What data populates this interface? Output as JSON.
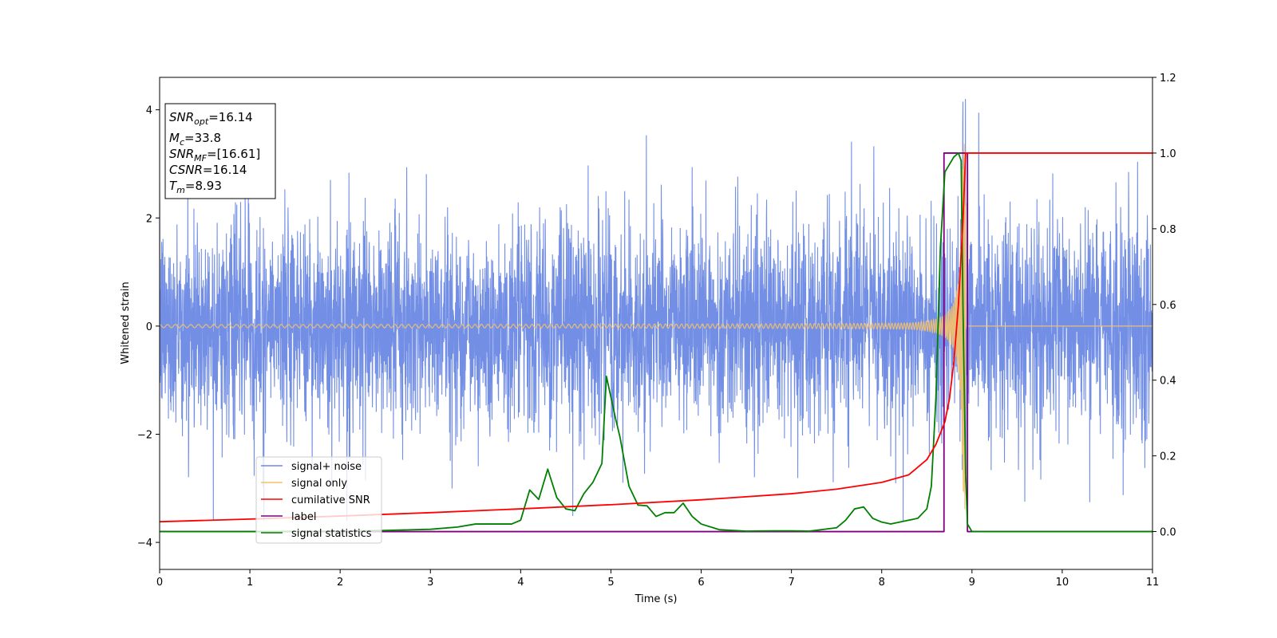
{
  "chart_data": {
    "type": "line",
    "xlabel": "Time (s)",
    "ylabel": "Whitened strain",
    "xlim": [
      0,
      11
    ],
    "ylim_left": [
      -4.5,
      4.6
    ],
    "ylim_right": [
      -0.1,
      1.2
    ],
    "x_ticks": [
      0,
      1,
      2,
      3,
      4,
      5,
      6,
      7,
      8,
      9,
      10,
      11
    ],
    "y_ticks_left": [
      -4,
      -2,
      0,
      2,
      4
    ],
    "y_ticks_left_labels": [
      "−4",
      "−2",
      "0",
      "2",
      "4"
    ],
    "y_ticks_right": [
      0.0,
      0.2,
      0.4,
      0.6,
      0.8,
      1.0,
      1.2
    ],
    "y_ticks_right_labels": [
      "0.0",
      "0.2",
      "0.4",
      "0.6",
      "0.8",
      "1.0",
      "1.2"
    ],
    "legend_position": "lower-left",
    "series": [
      {
        "name": "signal+ noise",
        "axis": "left",
        "color": "#6a88e4",
        "description_values": {
          "baseline_amplitude_range": [
            -2.2,
            2.2
          ],
          "peak": {
            "x": 8.9,
            "y": 4.15
          }
        }
      },
      {
        "name": "signal only",
        "axis": "left",
        "color": "#f5c26b",
        "chirp": {
          "start": 0,
          "merger": 8.93,
          "end": 11,
          "peak_amplitude": 3.4,
          "start_amplitude": 0.03
        }
      },
      {
        "name": "cumilative SNR",
        "axis": "right",
        "color": "#ff0000",
        "x": [
          0,
          1,
          2,
          3,
          4,
          5,
          6,
          7,
          7.5,
          8,
          8.3,
          8.5,
          8.6,
          8.7,
          8.75,
          8.8,
          8.85,
          8.9,
          8.93,
          8.94,
          9,
          10,
          11
        ],
        "y": [
          0.026,
          0.033,
          0.041,
          0.05,
          0.06,
          0.071,
          0.084,
          0.1,
          0.112,
          0.13,
          0.15,
          0.19,
          0.23,
          0.29,
          0.35,
          0.45,
          0.6,
          0.82,
          1.0,
          1.0,
          1.0,
          1.0,
          1.0
        ]
      },
      {
        "name": "label",
        "axis": "right",
        "color": "#800080",
        "x": [
          0,
          8.69,
          8.69,
          8.95,
          8.95,
          11
        ],
        "y": [
          0,
          0,
          1,
          1,
          0,
          0
        ]
      },
      {
        "name": "signal statistics",
        "axis": "right",
        "color": "#008000",
        "x": [
          0,
          1,
          2,
          2.5,
          3,
          3.3,
          3.5,
          3.7,
          3.9,
          4.0,
          4.1,
          4.2,
          4.3,
          4.4,
          4.5,
          4.6,
          4.7,
          4.8,
          4.9,
          4.95,
          5.05,
          5.1,
          5.2,
          5.3,
          5.4,
          5.5,
          5.6,
          5.7,
          5.8,
          5.9,
          6.0,
          6.2,
          6.5,
          6.8,
          7.0,
          7.2,
          7.5,
          7.6,
          7.7,
          7.8,
          7.9,
          8.0,
          8.1,
          8.2,
          8.3,
          8.4,
          8.5,
          8.55,
          8.6,
          8.65,
          8.7,
          8.75,
          8.8,
          8.85,
          8.88,
          8.9,
          8.93,
          8.95,
          9.0,
          10,
          11
        ],
        "y": [
          0.0,
          0.0,
          0.001,
          0.003,
          0.006,
          0.012,
          0.02,
          0.02,
          0.02,
          0.03,
          0.11,
          0.085,
          0.165,
          0.09,
          0.06,
          0.055,
          0.1,
          0.13,
          0.18,
          0.41,
          0.3,
          0.25,
          0.12,
          0.07,
          0.068,
          0.04,
          0.05,
          0.05,
          0.075,
          0.04,
          0.02,
          0.005,
          0.001,
          0.002,
          0.002,
          0.001,
          0.01,
          0.03,
          0.06,
          0.065,
          0.035,
          0.025,
          0.02,
          0.025,
          0.03,
          0.035,
          0.06,
          0.12,
          0.35,
          0.75,
          0.95,
          0.97,
          0.99,
          1.0,
          0.98,
          0.6,
          0.15,
          0.02,
          0.0,
          0.0,
          0.0
        ]
      }
    ],
    "annotation_box": {
      "lines": [
        {
          "var": "SNR",
          "sub": "opt",
          "value": "=16.14"
        },
        {
          "var": "M",
          "sub": "c",
          "value": "=33.8"
        },
        {
          "var": "SNR",
          "sub": "MF",
          "value": "=[16.61]"
        },
        {
          "var": "CSNR",
          "sub": "",
          "value": "=16.14"
        },
        {
          "var": "T",
          "sub": "m",
          "value": "=8.93"
        }
      ]
    }
  }
}
